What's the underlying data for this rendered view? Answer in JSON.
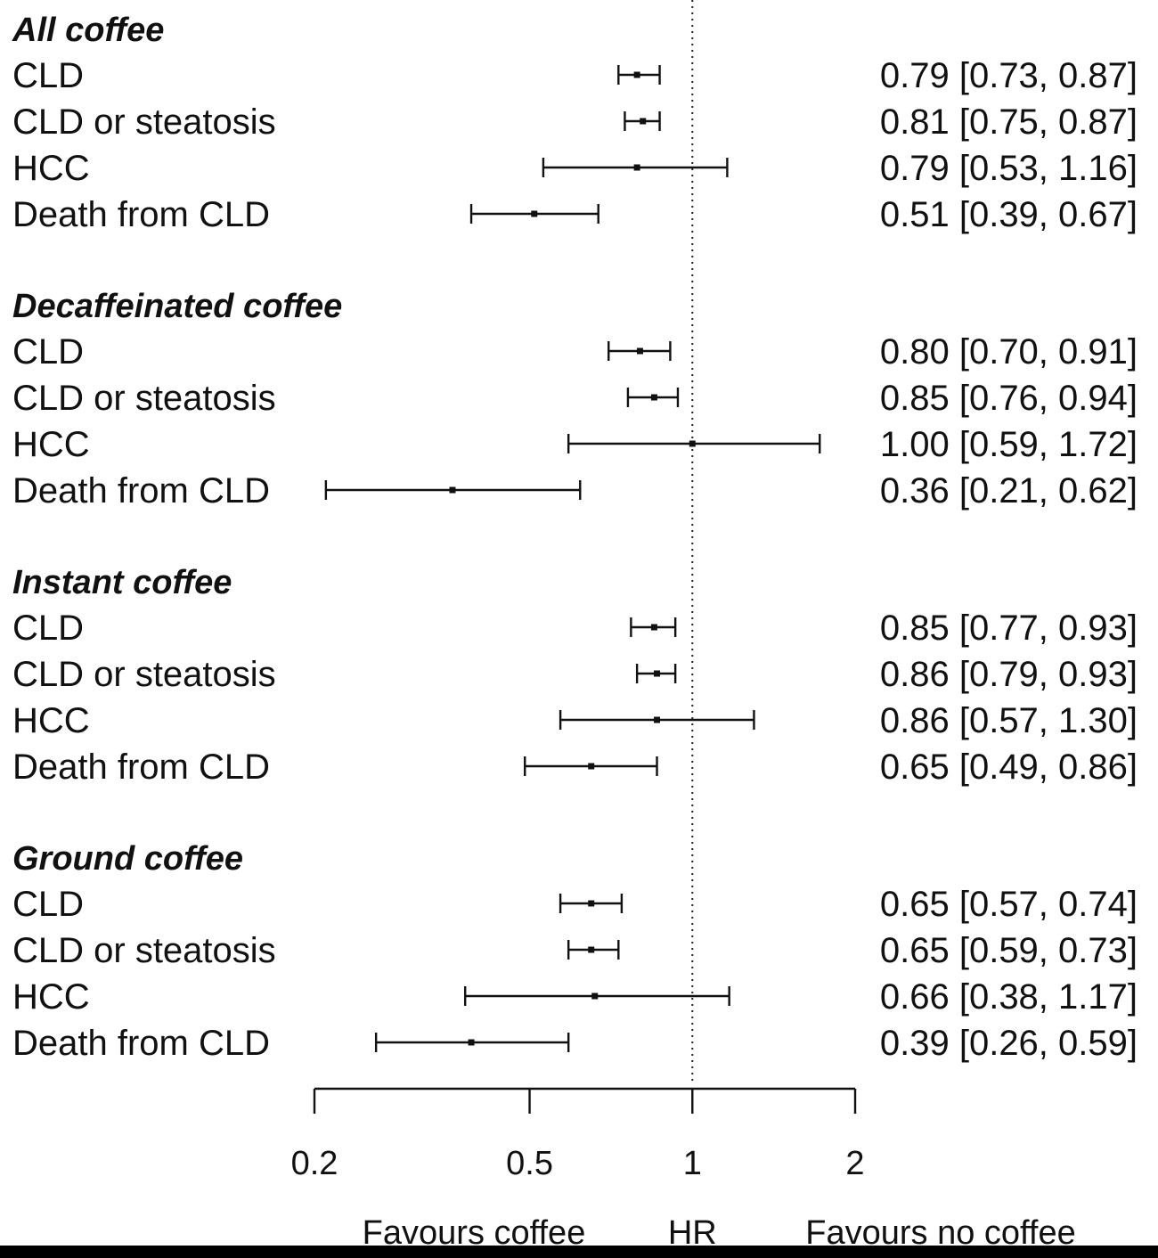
{
  "chart_data": {
    "type": "forest",
    "scale": "log",
    "xlim": [
      0.2,
      2
    ],
    "reference_line": 1,
    "ticks": [
      {
        "value": 0.2,
        "label": "0.2"
      },
      {
        "value": 0.5,
        "label": "0.5"
      },
      {
        "value": 1,
        "label": "1"
      },
      {
        "value": 2,
        "label": "2"
      }
    ],
    "axis_captions": {
      "left": "Favours coffee",
      "center": "HR",
      "right": "Favours no coffee"
    },
    "groups": [
      {
        "title": "All coffee",
        "rows": [
          {
            "label": "CLD",
            "hr": 0.79,
            "lo": 0.73,
            "hi": 0.87,
            "text": "0.79 [0.73, 0.87]"
          },
          {
            "label": "CLD or steatosis",
            "hr": 0.81,
            "lo": 0.75,
            "hi": 0.87,
            "text": "0.81 [0.75, 0.87]"
          },
          {
            "label": "HCC",
            "hr": 0.79,
            "lo": 0.53,
            "hi": 1.16,
            "text": "0.79 [0.53, 1.16]"
          },
          {
            "label": "Death from CLD",
            "hr": 0.51,
            "lo": 0.39,
            "hi": 0.67,
            "text": "0.51 [0.39, 0.67]"
          }
        ]
      },
      {
        "title": "Decaffeinated coffee",
        "rows": [
          {
            "label": "CLD",
            "hr": 0.8,
            "lo": 0.7,
            "hi": 0.91,
            "text": "0.80 [0.70, 0.91]"
          },
          {
            "label": "CLD or steatosis",
            "hr": 0.85,
            "lo": 0.76,
            "hi": 0.94,
            "text": "0.85 [0.76, 0.94]"
          },
          {
            "label": "HCC",
            "hr": 1.0,
            "lo": 0.59,
            "hi": 1.72,
            "text": "1.00 [0.59, 1.72]"
          },
          {
            "label": "Death from CLD",
            "hr": 0.36,
            "lo": 0.21,
            "hi": 0.62,
            "text": "0.36 [0.21, 0.62]"
          }
        ]
      },
      {
        "title": "Instant coffee",
        "rows": [
          {
            "label": "CLD",
            "hr": 0.85,
            "lo": 0.77,
            "hi": 0.93,
            "text": "0.85 [0.77, 0.93]"
          },
          {
            "label": "CLD or steatosis",
            "hr": 0.86,
            "lo": 0.79,
            "hi": 0.93,
            "text": "0.86 [0.79, 0.93]"
          },
          {
            "label": "HCC",
            "hr": 0.86,
            "lo": 0.57,
            "hi": 1.3,
            "text": "0.86 [0.57, 1.30]"
          },
          {
            "label": "Death from CLD",
            "hr": 0.65,
            "lo": 0.49,
            "hi": 0.86,
            "text": "0.65 [0.49, 0.86]"
          }
        ]
      },
      {
        "title": "Ground coffee",
        "rows": [
          {
            "label": "CLD",
            "hr": 0.65,
            "lo": 0.57,
            "hi": 0.74,
            "text": "0.65 [0.57, 0.74]"
          },
          {
            "label": "CLD or steatosis",
            "hr": 0.65,
            "lo": 0.59,
            "hi": 0.73,
            "text": "0.65 [0.59, 0.73]"
          },
          {
            "label": "HCC",
            "hr": 0.66,
            "lo": 0.38,
            "hi": 1.17,
            "text": "0.66 [0.38, 1.17]"
          },
          {
            "label": "Death from CLD",
            "hr": 0.39,
            "lo": 0.26,
            "hi": 0.59,
            "text": "0.39 [0.26, 0.59]"
          }
        ]
      }
    ]
  }
}
